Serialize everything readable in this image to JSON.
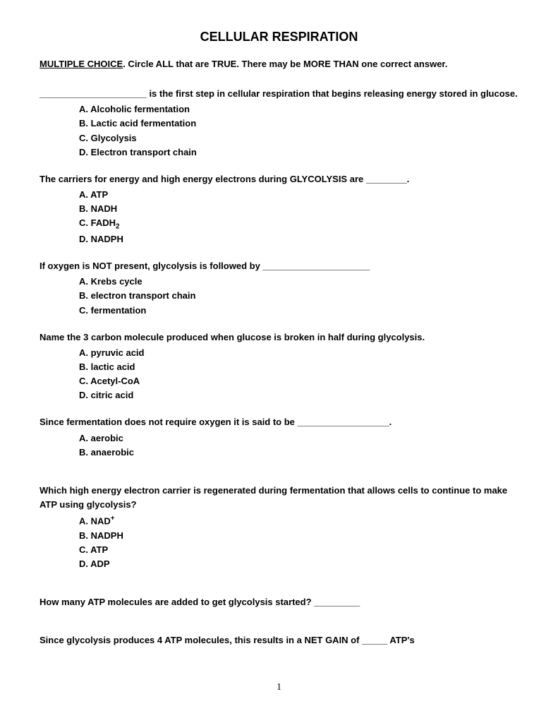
{
  "title": "CELLULAR RESPIRATION",
  "instructions_label": "MULTIPLE CHOICE",
  "instructions_rest": ". Circle ALL that are TRUE. There may be MORE THAN one correct answer.",
  "questions": [
    {
      "stem": "_____________________ is the first step in cellular respiration that begins releasing energy stored in glucose.",
      "options": [
        "A. Alcoholic fermentation",
        "B. Lactic acid fermentation",
        "C. Glycolysis",
        "D. Electron transport chain"
      ]
    },
    {
      "stem": "The carriers for energy and high energy electrons during GLYCOLYSIS are ________.",
      "options": [
        "A. ATP",
        "B. NADH",
        "C. FADH",
        "D. NADPH"
      ],
      "sub_after": {
        "2": "2"
      }
    },
    {
      "stem": "If oxygen is NOT present, glycolysis is followed by _____________________",
      "options": [
        "A. Krebs cycle",
        "B. electron transport chain",
        "C. fermentation"
      ]
    },
    {
      "stem": "Name the 3 carbon molecule produced when glucose is broken in half during glycolysis.",
      "options": [
        "A. pyruvic acid",
        "B. lactic acid",
        "C. Acetyl-CoA",
        "D. citric acid"
      ]
    },
    {
      "stem": "Since fermentation does not require oxygen it is said to be __________________.",
      "options": [
        "A. aerobic",
        "B. anaerobic"
      ]
    },
    {
      "stem": "Which high energy electron carrier is regenerated during fermentation that allows cells to continue to make ATP using glycolysis?",
      "options": [
        "A. NAD",
        "B. NADPH",
        "C. ATP",
        "D. ADP"
      ],
      "sup_after": {
        "0": "+"
      }
    },
    {
      "stem": "How many ATP molecules are added to get glycolysis started?   _________",
      "options": []
    },
    {
      "stem": "Since glycolysis produces 4 ATP molecules, this results in a NET GAIN of _____ ATP's",
      "options": []
    }
  ],
  "page_number": "1",
  "extra_gap_after": [
    4,
    5,
    6
  ]
}
